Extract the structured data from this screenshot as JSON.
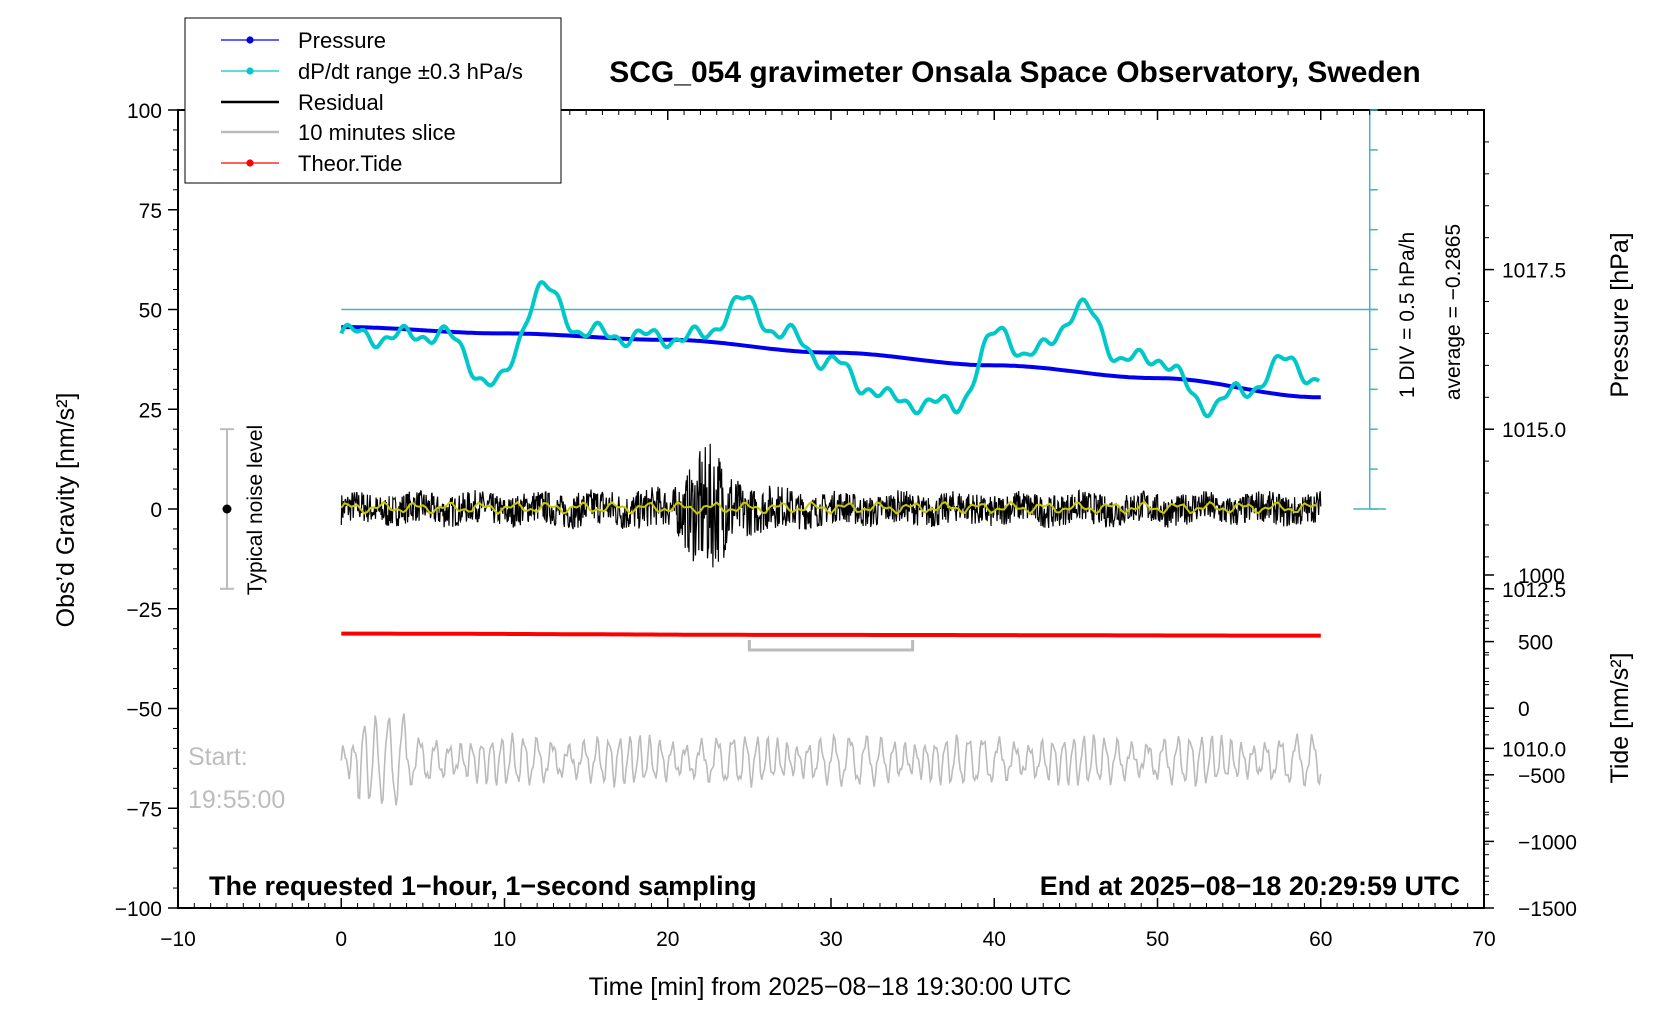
{
  "chart_data": {
    "type": "line",
    "title": "SCG_054 gravimeter Onsala Space Observatory, Sweden",
    "xlabel": "Time [min] from 2025−08−18 19:30:00 UTC",
    "ylabel_left": "Obs’d Gravity [nm/s²]",
    "ylabel_right_top": "Pressure [hPa]",
    "ylabel_right_bottom": "Tide [nm/s²]",
    "xlim": [
      -10,
      70
    ],
    "ylim": [
      -100,
      100
    ],
    "pressure_ylim": [
      1007.5,
      1020.0
    ],
    "tide_ylim": [
      -1500,
      1000
    ],
    "x_ticks": [
      "−10",
      "0",
      "10",
      "20",
      "30",
      "40",
      "50",
      "60",
      "70"
    ],
    "y_ticks": [
      "100",
      "75",
      "50",
      "25",
      "0",
      "−25",
      "−50",
      "−75",
      "−100"
    ],
    "pressure_ticks": [
      "1017.5",
      "1015.0",
      "1012.5",
      "1010.0"
    ],
    "tide_ticks": [
      "1000",
      "500",
      "0",
      "−500",
      "−1000",
      "−1500"
    ],
    "legend": {
      "placement": "top-left",
      "entries": [
        "Pressure",
        "dP/dt range ±0.3 hPa/s",
        "Residual",
        "10 minutes slice",
        "Theor.Tide"
      ]
    },
    "colors": {
      "pressure": "#0000ee",
      "dpdt": "#00c8c8",
      "residual": "#000000",
      "residual_smooth": "#c8c800",
      "slice": "#bbbbbb",
      "tide": "#ff0000",
      "scale": "#40b8b8"
    },
    "series": [
      {
        "name": "Pressure",
        "x": [
          0,
          10,
          20,
          30,
          40,
          50,
          60
        ],
        "pressure_hPa": [
          1016.6,
          1016.5,
          1016.4,
          1016.2,
          1016.0,
          1015.8,
          1015.5
        ]
      },
      {
        "name": "dP/dt range ±0.3 hPa/s",
        "x": [
          0,
          3,
          6,
          9.5,
          12.3,
          15,
          19,
          22,
          24.5,
          27,
          30,
          32,
          34,
          37.5,
          40.5,
          42,
          45.5,
          48,
          50,
          53,
          55,
          58,
          60
        ],
        "values": [
          44,
          43,
          44,
          31,
          55,
          44,
          43,
          43,
          52,
          44,
          37,
          31,
          27,
          26,
          45,
          38,
          50,
          37,
          38,
          26,
          29,
          37,
          32
        ]
      },
      {
        "name": "Residual",
        "x": [
          0,
          10,
          20,
          22.5,
          25,
          30,
          40,
          50,
          60
        ],
        "noise_amplitude": [
          4,
          4,
          5,
          16,
          6,
          4,
          4,
          4,
          4
        ]
      },
      {
        "name": "10 minutes slice",
        "x_start": 25,
        "x_end": 35
      },
      {
        "name": "Theor.Tide",
        "x": [
          0,
          30,
          60
        ],
        "tide_nm_s2": [
          560,
          550,
          545
        ]
      }
    ],
    "annotations": {
      "noise_label": "Typical noise level",
      "noise_range": [
        -20,
        20
      ],
      "scale_div": "1 DIV = 0.5 hPa/h",
      "average": "average = −0.2865",
      "start_label": "Start:",
      "start_time": "19:55:00",
      "sampling_note": "The requested 1−hour, 1−second sampling",
      "end_note": "End at 2025−08−18 20:29:59 UTC"
    }
  }
}
